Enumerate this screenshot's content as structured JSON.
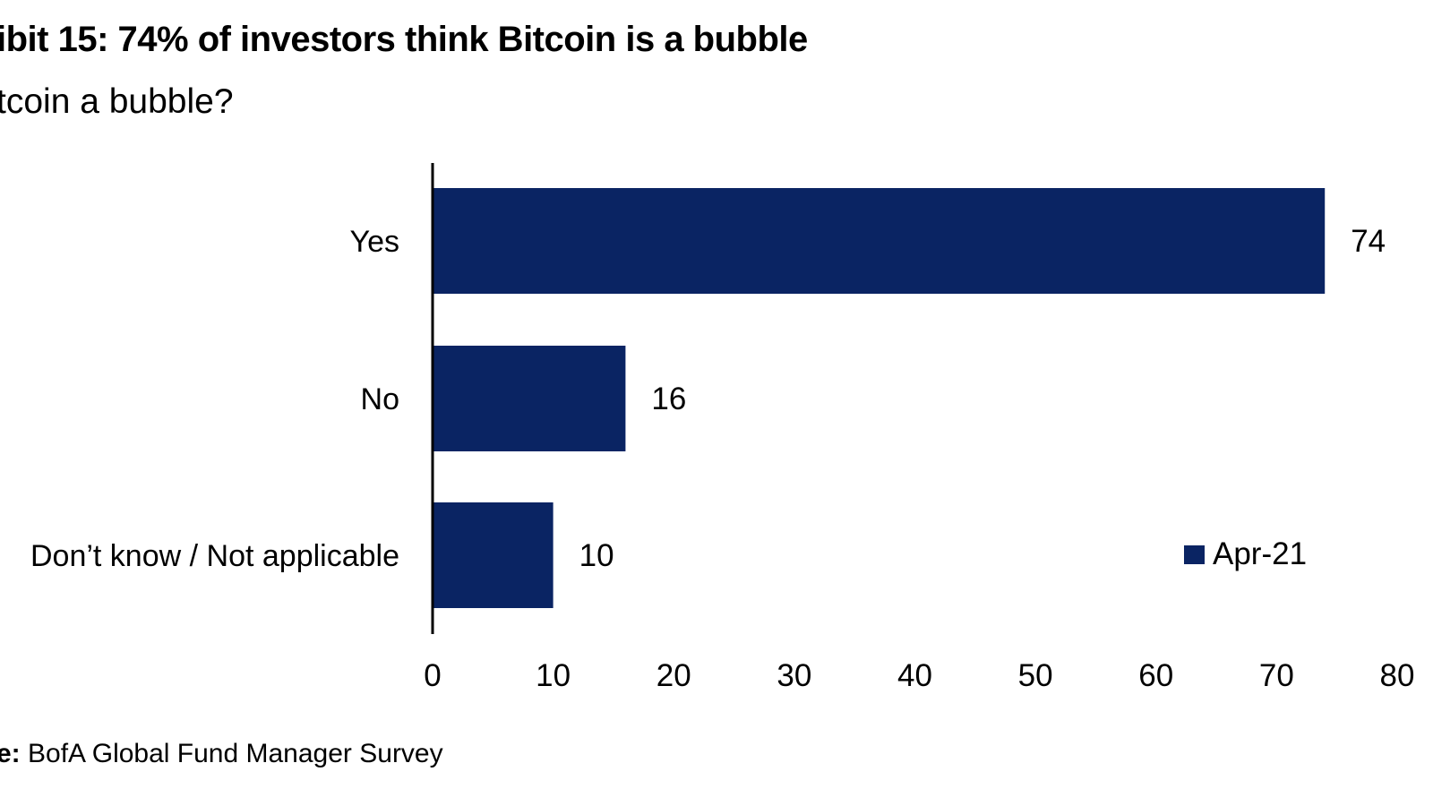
{
  "header": {
    "title": "ibit 15: 74% of investors think Bitcoin is a bubble",
    "subtitle": "tcoin a bubble?"
  },
  "footer": {
    "source_label": "e:",
    "source_text": " BofA Global Fund Manager Survey"
  },
  "colors": {
    "bar": "#0a2463",
    "axis": "#000000",
    "text": "#000000"
  },
  "chart_data": {
    "type": "bar",
    "orientation": "horizontal",
    "categories": [
      "Yes",
      "No",
      "Don’t know / Not applicable"
    ],
    "series": [
      {
        "name": "Apr-21",
        "values": [
          74,
          16,
          10
        ]
      }
    ],
    "data_labels": [
      "74",
      "16",
      "10"
    ],
    "xlim": [
      0,
      80
    ],
    "xticks": [
      "0",
      "10",
      "20",
      "30",
      "40",
      "50",
      "60",
      "70",
      "80"
    ],
    "grid": false,
    "legend_position": "bottom-right"
  }
}
